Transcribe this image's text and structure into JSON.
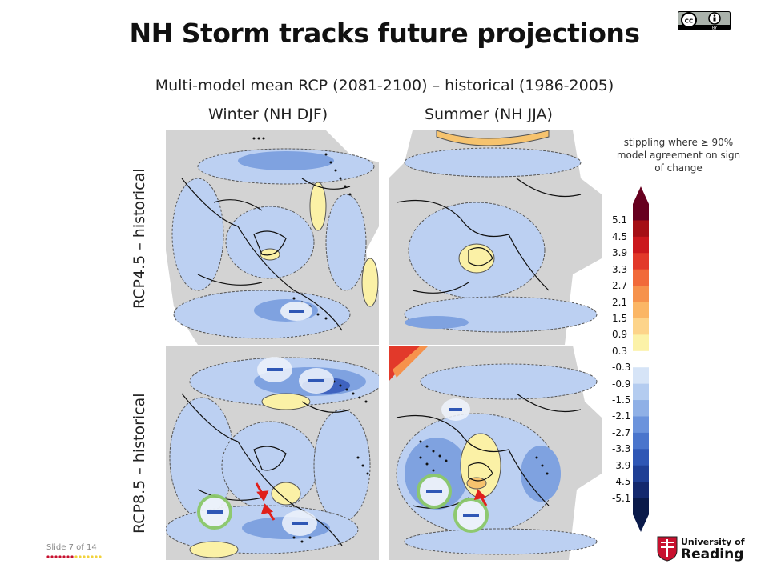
{
  "slide": {
    "title": "NH Storm tracks future projections",
    "subtitle": "Multi-model mean RCP (2081-2100) – historical (1986-2005)",
    "columns": [
      "Winter (NH DJF)",
      "Summer (NH JJA)"
    ],
    "rows": [
      "RCP4.5 – historical",
      "RCP8.5 – historical"
    ],
    "stippling_note": "stippling where ≥ 90% model agreement on sign of change",
    "license_badge": {
      "cc": "cc",
      "by": "BY"
    },
    "slide_number": "Slide 7",
    "slide_total": "of 14",
    "institution": {
      "line1": "University of",
      "line2": "Reading"
    }
  },
  "colorbar": {
    "ticks": [
      "5.1",
      "4.5",
      "3.9",
      "3.3",
      "2.7",
      "2.1",
      "1.5",
      "0.9",
      "0.3",
      "-0.3",
      "-0.9",
      "-1.5",
      "-2.1",
      "-2.7",
      "-3.3",
      "-3.9",
      "-4.5",
      "-5.1"
    ],
    "colors": [
      "#67001f",
      "#a50f15",
      "#cb181d",
      "#e2392a",
      "#f16a3a",
      "#f6924c",
      "#fbb665",
      "#fdd48a",
      "#fcf2a8",
      "#ffffff",
      "#d6e4f7",
      "#b4ccf0",
      "#8fb0e6",
      "#6b93dc",
      "#4a75cc",
      "#2f57b5",
      "#1f3f95",
      "#14296e",
      "#0a1a4a"
    ]
  },
  "colors": {
    "land_gray": "#d3d3d3",
    "neg_light": "#bcd0f2",
    "neg_mid": "#7fa2e0",
    "neg_dark": "#3f63c0",
    "pos_light": "#fbf1a6",
    "pos_mid": "#f6c36e",
    "pos_dark": "#e2392a",
    "highlight_green": "#8cc96a",
    "arrow_red": "#e0201c"
  },
  "icons": {
    "license": "creative-commons-by-icon",
    "logo": "university-crest-icon",
    "arrow": "red-arrow-icon",
    "minus": "minus-sign-icon"
  }
}
